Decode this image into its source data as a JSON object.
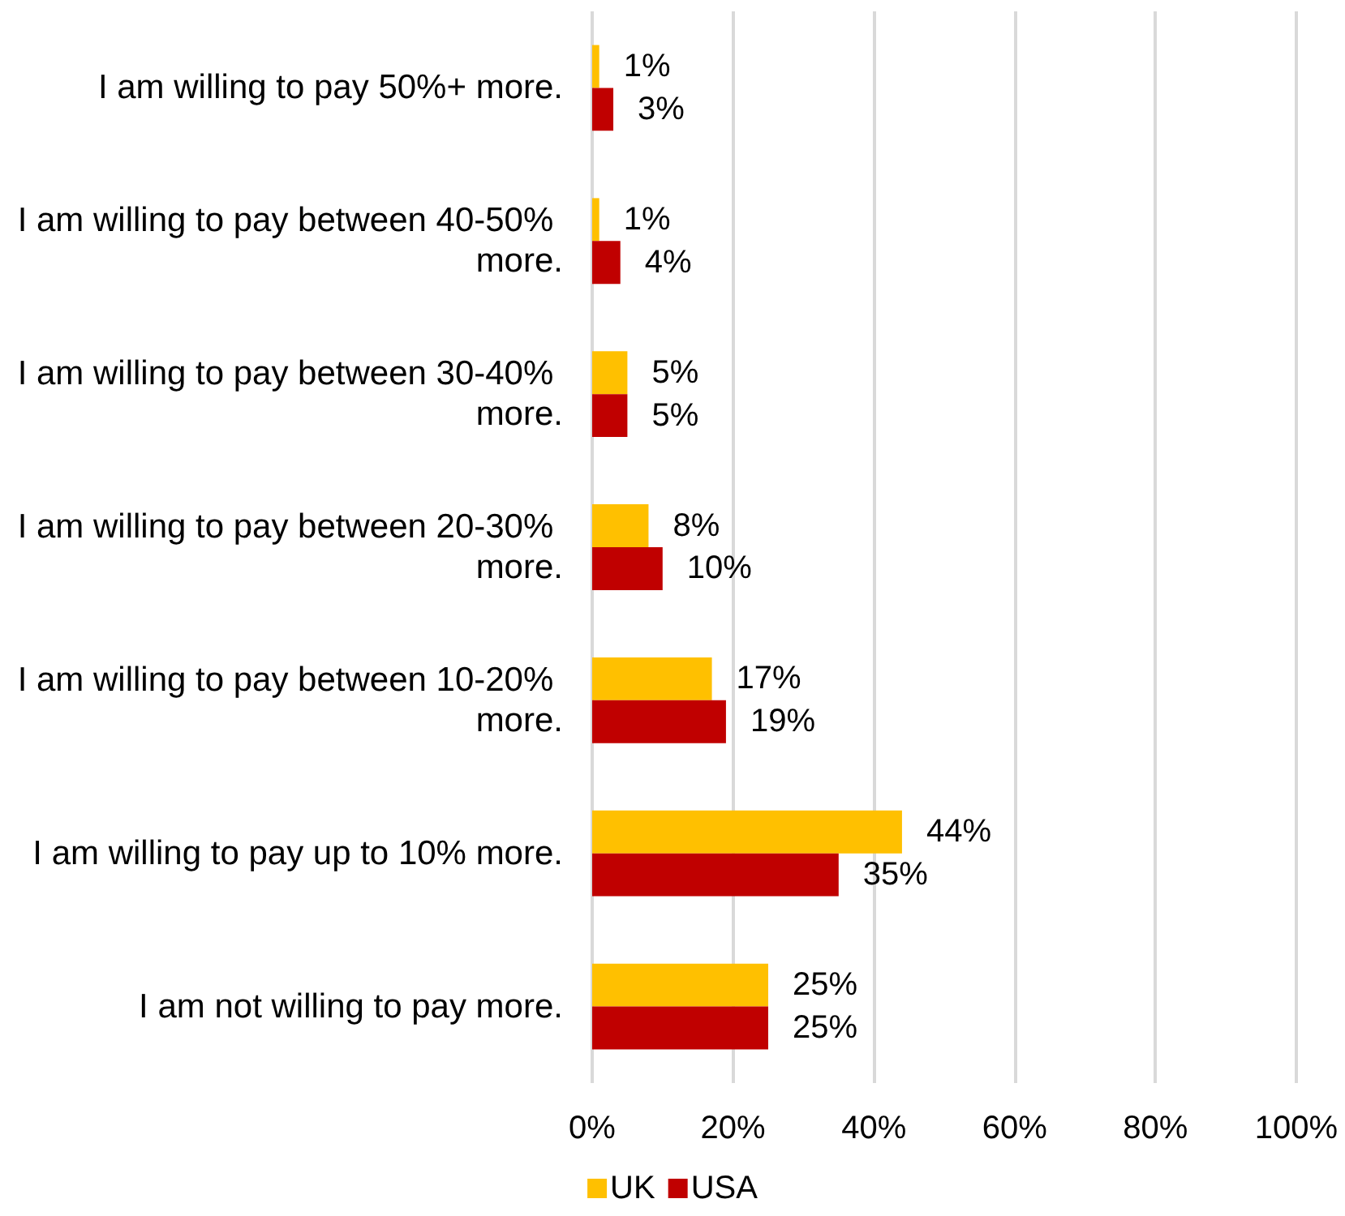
{
  "chart_data": {
    "type": "bar",
    "orientation": "horizontal",
    "categories": [
      "I am willing to pay 50%+ more.",
      "I am willing to pay between 40-50% more.",
      "I am willing to pay between 30-40% more.",
      "I am willing to pay between 20-30% more.",
      "I am willing to pay between 10-20% more.",
      "I am willing to pay up to 10% more.",
      "I am not willing to pay more."
    ],
    "series": [
      {
        "name": "UK",
        "color": "#ffc000",
        "values": [
          1,
          1,
          5,
          8,
          17,
          44,
          25
        ],
        "value_labels": [
          "1%",
          "1%",
          "5%",
          "8%",
          "17%",
          "44%",
          "25%"
        ]
      },
      {
        "name": "USA",
        "color": "#c00000",
        "values": [
          3,
          4,
          5,
          10,
          19,
          35,
          25
        ],
        "value_labels": [
          "3%",
          "4%",
          "5%",
          "10%",
          "19%",
          "35%",
          "25%"
        ]
      }
    ],
    "xlim": [
      0,
      100
    ],
    "xticks": [
      {
        "value": 0,
        "label": "0%"
      },
      {
        "value": 20,
        "label": "20%"
      },
      {
        "value": 40,
        "label": "40%"
      },
      {
        "value": 60,
        "label": "60%"
      },
      {
        "value": 80,
        "label": "80%"
      },
      {
        "value": 100,
        "label": "100%"
      }
    ],
    "grid": "x",
    "legend": "bottom"
  }
}
